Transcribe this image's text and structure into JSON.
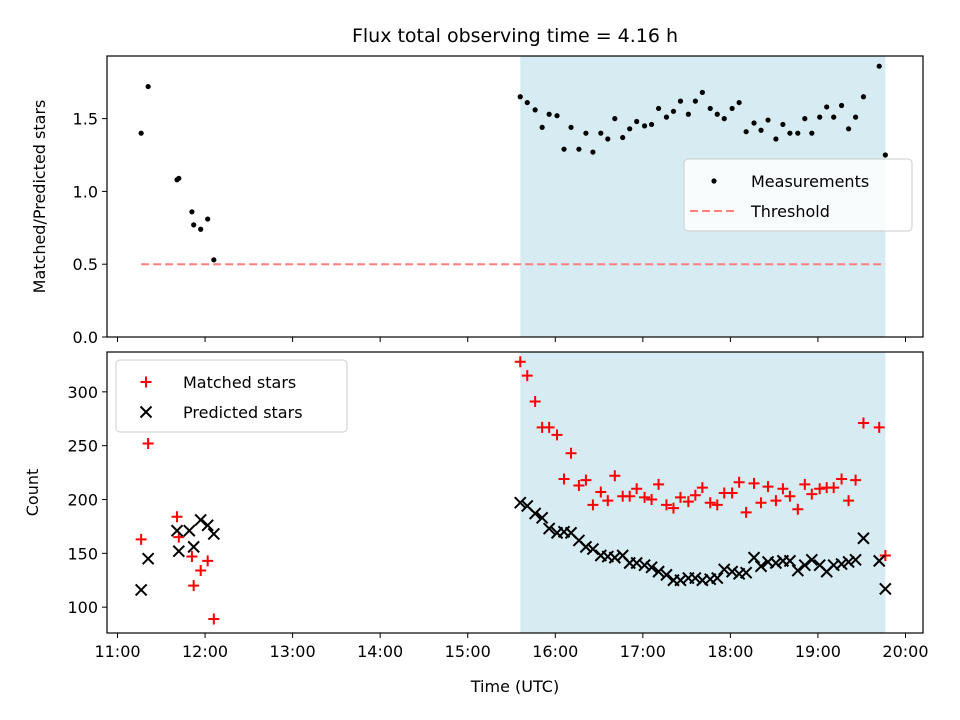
{
  "chart_data": [
    {
      "type": "scatter",
      "title": "Flux total observing time = 4.16 h",
      "xlabel": "",
      "ylabel": "Matched/Predicted stars",
      "ylim": [
        0,
        1.93
      ],
      "yticks": [
        0.0,
        0.5,
        1.0,
        1.5
      ],
      "ytick_labels": [
        "0.0",
        "0.5",
        "1.0",
        "1.5"
      ],
      "xlim_hours": [
        10.88,
        20.2
      ],
      "shaded_region_hours": [
        15.6,
        19.77
      ],
      "legend_position": "center-right",
      "series": [
        {
          "name": "Measurements",
          "marker": "dot",
          "color": "#000000",
          "x_hours": [
            11.27,
            11.35,
            11.68,
            11.7,
            11.85,
            11.87,
            11.95,
            12.03,
            12.1,
            15.6,
            15.68,
            15.77,
            15.85,
            15.93,
            16.02,
            16.1,
            16.18,
            16.27,
            16.35,
            16.43,
            16.52,
            16.6,
            16.68,
            16.77,
            16.85,
            16.93,
            17.02,
            17.1,
            17.18,
            17.27,
            17.35,
            17.43,
            17.52,
            17.6,
            17.68,
            17.77,
            17.85,
            17.93,
            18.02,
            18.1,
            18.18,
            18.27,
            18.35,
            18.43,
            18.52,
            18.6,
            18.68,
            18.77,
            18.85,
            18.93,
            19.02,
            19.1,
            19.18,
            19.27,
            19.35,
            19.43,
            19.52,
            19.7,
            19.77
          ],
          "y": [
            1.4,
            1.72,
            1.08,
            1.09,
            0.86,
            0.77,
            0.74,
            0.81,
            0.53,
            1.65,
            1.61,
            1.56,
            1.44,
            1.53,
            1.52,
            1.29,
            1.44,
            1.29,
            1.4,
            1.27,
            1.4,
            1.36,
            1.5,
            1.37,
            1.43,
            1.48,
            1.45,
            1.46,
            1.57,
            1.51,
            1.55,
            1.62,
            1.53,
            1.62,
            1.68,
            1.57,
            1.53,
            1.5,
            1.57,
            1.61,
            1.41,
            1.47,
            1.42,
            1.49,
            1.36,
            1.46,
            1.4,
            1.4,
            1.5,
            1.4,
            1.51,
            1.58,
            1.51,
            1.59,
            1.43,
            1.51,
            1.65,
            1.86,
            1.25
          ]
        },
        {
          "name": "Threshold",
          "marker": "dashed-line",
          "color": "#ff7f7f",
          "x_hours": [
            11.27,
            19.77
          ],
          "y": [
            0.5,
            0.5
          ]
        }
      ]
    },
    {
      "type": "scatter",
      "title": "",
      "xlabel": "Time (UTC)",
      "ylabel": "Count",
      "ylim": [
        76,
        337
      ],
      "yticks": [
        100,
        150,
        200,
        250,
        300
      ],
      "ytick_labels": [
        "100",
        "150",
        "200",
        "250",
        "300"
      ],
      "xlim_hours": [
        10.88,
        20.2
      ],
      "xticks_hours": [
        11,
        12,
        13,
        14,
        15,
        16,
        17,
        18,
        19,
        20
      ],
      "xtick_labels": [
        "11:00",
        "12:00",
        "13:00",
        "14:00",
        "15:00",
        "16:00",
        "17:00",
        "18:00",
        "19:00",
        "20:00"
      ],
      "shaded_region_hours": [
        15.6,
        19.77
      ],
      "legend_position": "upper-left",
      "series": [
        {
          "name": "Matched stars",
          "marker": "plus",
          "color": "#ff0000",
          "x_hours": [
            11.27,
            11.35,
            11.68,
            11.7,
            11.85,
            11.87,
            11.95,
            12.03,
            12.1,
            15.6,
            15.68,
            15.77,
            15.85,
            15.93,
            16.02,
            16.1,
            16.18,
            16.27,
            16.35,
            16.43,
            16.52,
            16.6,
            16.68,
            16.77,
            16.85,
            16.93,
            17.02,
            17.1,
            17.18,
            17.27,
            17.35,
            17.43,
            17.52,
            17.6,
            17.68,
            17.77,
            17.85,
            17.93,
            18.02,
            18.1,
            18.18,
            18.27,
            18.35,
            18.43,
            18.52,
            18.6,
            18.68,
            18.77,
            18.85,
            18.93,
            19.02,
            19.1,
            19.18,
            19.27,
            19.35,
            19.43,
            19.52,
            19.7,
            19.77
          ],
          "y": [
            163,
            252,
            184,
            165,
            147,
            120,
            134,
            143,
            89,
            328,
            315,
            291,
            267,
            267,
            260,
            219,
            243,
            213,
            218,
            195,
            207,
            199,
            222,
            203,
            203,
            210,
            202,
            200,
            214,
            195,
            192,
            202,
            198,
            204,
            211,
            197,
            195,
            206,
            206,
            216,
            188,
            215,
            197,
            212,
            199,
            210,
            203,
            191,
            214,
            205,
            210,
            211,
            211,
            219,
            199,
            218,
            271,
            267,
            148
          ]
        },
        {
          "name": "Predicted stars",
          "marker": "x",
          "color": "#000000",
          "x_hours": [
            11.27,
            11.35,
            11.68,
            11.7,
            11.82,
            11.87,
            11.95,
            12.03,
            12.1,
            15.6,
            15.68,
            15.77,
            15.85,
            15.93,
            16.02,
            16.1,
            16.18,
            16.27,
            16.35,
            16.43,
            16.52,
            16.6,
            16.68,
            16.77,
            16.85,
            16.93,
            17.02,
            17.1,
            17.18,
            17.27,
            17.35,
            17.43,
            17.52,
            17.6,
            17.68,
            17.77,
            17.85,
            17.93,
            18.02,
            18.1,
            18.18,
            18.27,
            18.35,
            18.43,
            18.52,
            18.6,
            18.68,
            18.77,
            18.85,
            18.93,
            19.02,
            19.1,
            19.18,
            19.27,
            19.35,
            19.43,
            19.52,
            19.7,
            19.77
          ],
          "y": [
            116,
            145,
            171,
            152,
            171,
            156,
            181,
            176,
            168,
            197,
            194,
            187,
            183,
            173,
            169,
            170,
            169,
            162,
            156,
            154,
            148,
            147,
            146,
            148,
            141,
            141,
            139,
            137,
            133,
            130,
            125,
            125,
            127,
            127,
            125,
            126,
            127,
            135,
            133,
            131,
            132,
            146,
            138,
            142,
            141,
            143,
            143,
            134,
            139,
            144,
            139,
            133,
            139,
            140,
            142,
            144,
            164,
            143,
            117
          ]
        }
      ]
    }
  ]
}
